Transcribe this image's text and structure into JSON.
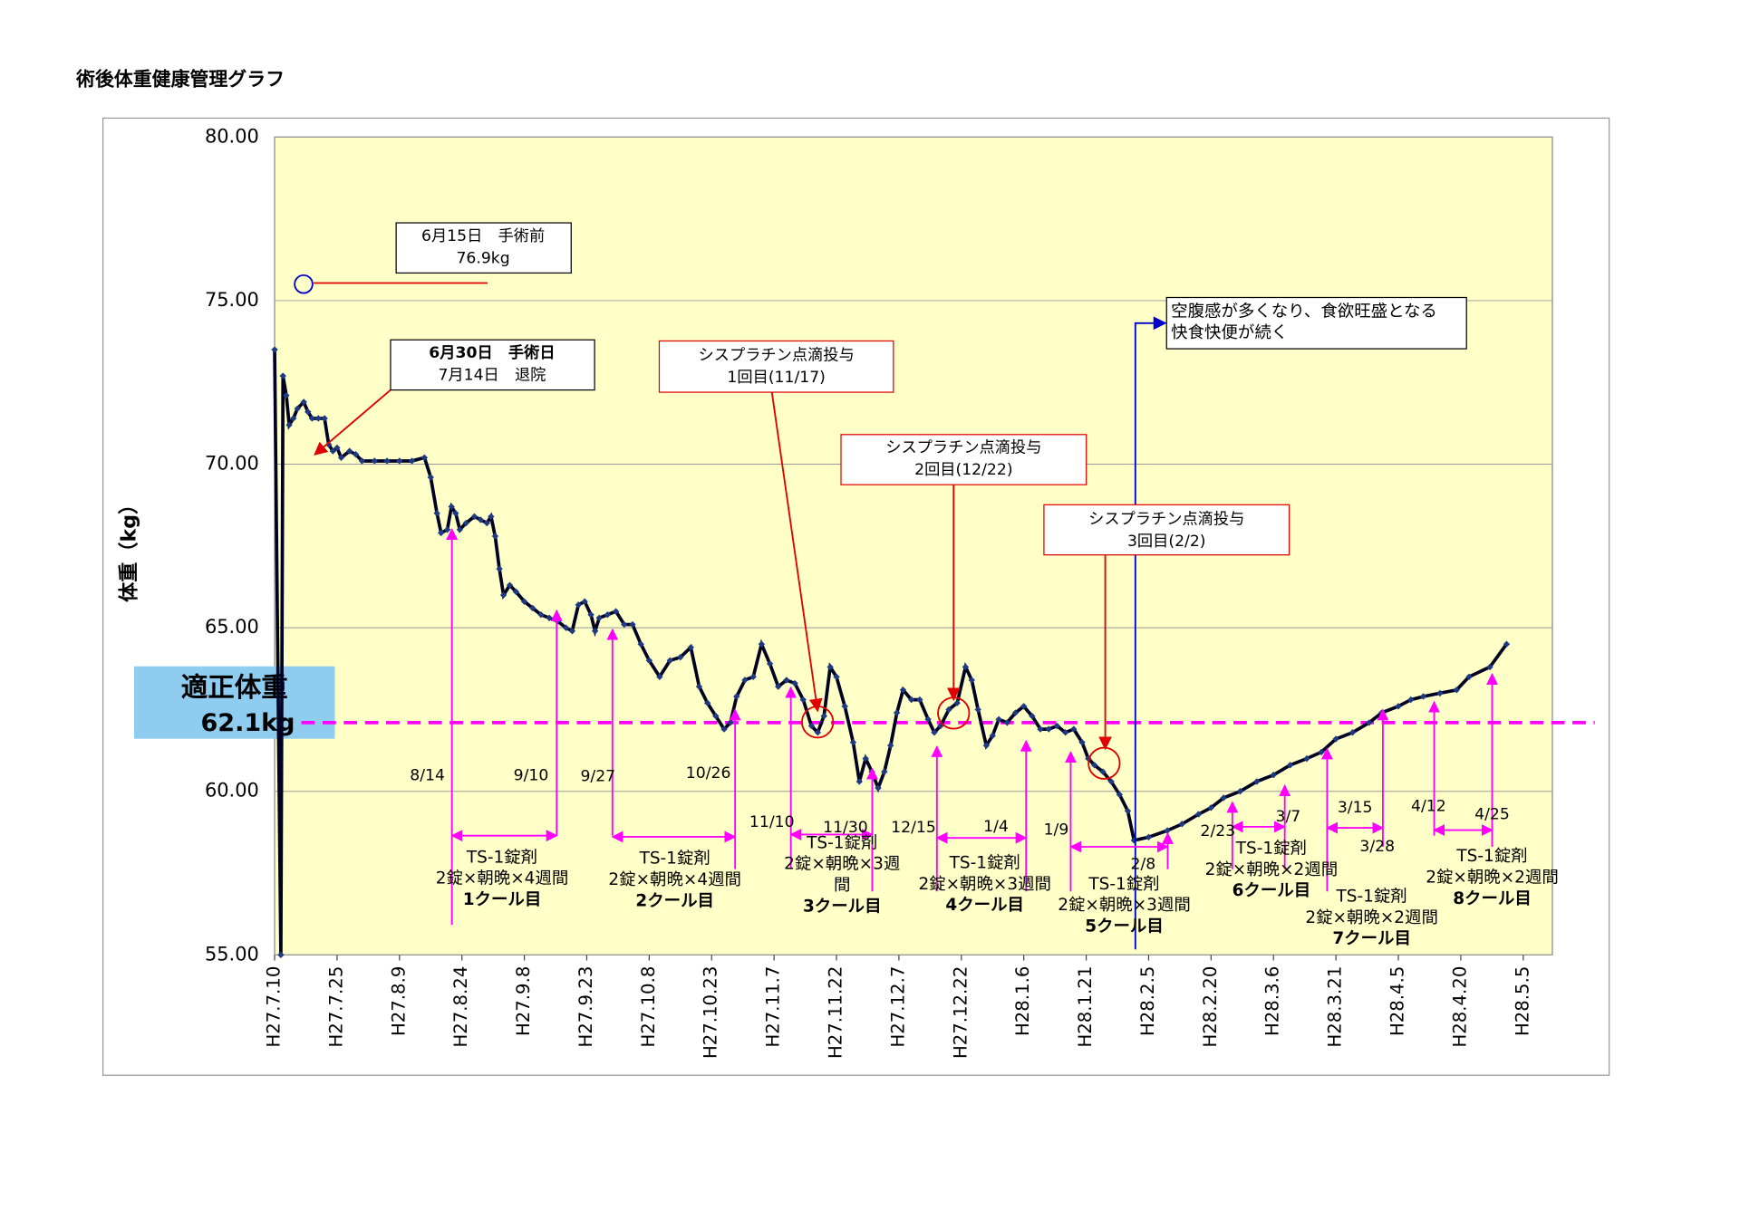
{
  "chart_data": {
    "type": "line",
    "title": "術後体重健康管理グラフ",
    "ylabel": "体重（kg）",
    "color": "#000022",
    "marker_color": "#1f3a80",
    "plot_background": "#ffffc8",
    "grid": true,
    "xlim": [
      0,
      307
    ],
    "ylim": [
      55,
      80
    ],
    "yticks": [
      {
        "value": 55,
        "label": "55.00"
      },
      {
        "value": 60,
        "label": "60.00"
      },
      {
        "value": 65,
        "label": "65.00"
      },
      {
        "value": 70,
        "label": "70.00"
      },
      {
        "value": 75,
        "label": "75.00"
      },
      {
        "value": 80,
        "label": "80.00"
      }
    ],
    "xticks": [
      {
        "value": 0,
        "label": "H27.7.10"
      },
      {
        "value": 15,
        "label": "H27.7.25"
      },
      {
        "value": 30,
        "label": "H27.8.9"
      },
      {
        "value": 45,
        "label": "H27.8.24"
      },
      {
        "value": 60,
        "label": "H27.9.8"
      },
      {
        "value": 75,
        "label": "H27.9.23"
      },
      {
        "value": 90,
        "label": "H27.10.8"
      },
      {
        "value": 105,
        "label": "H27.10.23"
      },
      {
        "value": 120,
        "label": "H27.11.7"
      },
      {
        "value": 135,
        "label": "H27.11.22"
      },
      {
        "value": 150,
        "label": "H27.12.7"
      },
      {
        "value": 165,
        "label": "H27.12.22"
      },
      {
        "value": 180,
        "label": "H28.1.6"
      },
      {
        "value": 195,
        "label": "H28.1.21"
      },
      {
        "value": 210,
        "label": "H28.2.5"
      },
      {
        "value": 225,
        "label": "H28.2.20"
      },
      {
        "value": 240,
        "label": "H28.3.6"
      },
      {
        "value": 255,
        "label": "H28.3.21"
      },
      {
        "value": 270,
        "label": "H28.4.5"
      },
      {
        "value": 285,
        "label": "H28.4.20"
      },
      {
        "value": 300,
        "label": "H28.5.5"
      }
    ],
    "x": [
      0,
      1.5,
      2,
      2.8,
      3.5,
      4.5,
      5.5,
      7,
      8,
      9,
      10.5,
      12,
      13,
      14,
      15,
      16,
      18,
      19.5,
      21,
      24,
      27,
      30,
      33,
      36,
      37.5,
      39,
      40,
      41.5,
      42.5,
      43.5,
      44.5,
      46,
      48,
      49.5,
      51,
      52,
      53,
      54,
      55,
      56.5,
      58,
      60,
      62,
      64,
      66,
      68,
      70,
      71.5,
      73,
      74.5,
      76,
      77,
      78,
      80,
      82,
      84,
      86,
      88,
      90,
      92.5,
      95,
      97.5,
      100,
      102,
      104,
      106,
      108,
      109.5,
      111,
      113,
      115,
      117,
      119,
      121,
      123,
      125,
      127,
      129,
      130.5,
      132,
      133.5,
      135,
      137,
      139,
      140.5,
      142,
      143.5,
      145,
      146.5,
      148,
      149.5,
      151,
      153,
      155,
      157,
      158.5,
      160,
      162,
      164,
      166,
      167.5,
      169,
      171,
      172.5,
      174,
      176,
      178,
      180,
      182,
      184,
      186,
      188,
      190,
      192,
      194,
      195.5,
      197,
      199,
      201,
      203,
      205,
      206.5,
      210,
      214.5,
      218,
      222,
      225,
      228,
      232,
      236,
      240,
      244,
      248,
      251.5,
      255,
      259,
      263,
      266,
      270,
      273,
      276,
      280,
      284,
      287,
      292,
      296
    ],
    "values": [
      73.5,
      55,
      72.7,
      72.1,
      71.2,
      71.4,
      71.7,
      71.9,
      71.6,
      71.4,
      71.4,
      71.4,
      70.6,
      70.4,
      70.5,
      70.2,
      70.4,
      70.3,
      70.1,
      70.1,
      70.1,
      70.1,
      70.1,
      70.2,
      69.6,
      68.5,
      67.9,
      68.0,
      68.7,
      68.5,
      68.0,
      68.2,
      68.4,
      68.3,
      68.2,
      68.4,
      67.8,
      66.8,
      66.0,
      66.3,
      66.1,
      65.8,
      65.6,
      65.4,
      65.3,
      65.2,
      65.0,
      64.9,
      65.7,
      65.8,
      65.4,
      64.9,
      65.3,
      65.4,
      65.5,
      65.1,
      65.1,
      64.5,
      64.0,
      63.5,
      64.0,
      64.1,
      64.4,
      63.2,
      62.7,
      62.3,
      61.9,
      62.1,
      62.9,
      63.4,
      63.5,
      64.5,
      63.9,
      63.2,
      63.4,
      63.3,
      62.8,
      62.0,
      61.8,
      62.3,
      63.8,
      63.5,
      62.6,
      61.5,
      60.3,
      61.0,
      60.6,
      60.1,
      60.6,
      61.4,
      62.4,
      63.1,
      62.8,
      62.8,
      62.2,
      61.8,
      62.0,
      62.5,
      62.7,
      63.8,
      63.4,
      62.5,
      61.4,
      61.7,
      62.2,
      62.1,
      62.4,
      62.6,
      62.3,
      61.9,
      61.9,
      62.0,
      61.8,
      61.9,
      61.5,
      61.0,
      60.8,
      60.6,
      60.3,
      59.9,
      59.4,
      58.5,
      58.6,
      58.8,
      59.0,
      59.3,
      59.5,
      59.8,
      60.0,
      60.3,
      60.5,
      60.8,
      61.0,
      61.2,
      61.6,
      61.8,
      62.1,
      62.4,
      62.6,
      62.8,
      62.9,
      63.0,
      63.1,
      63.5,
      63.8,
      64.5
    ],
    "target": {
      "label": "適正体重",
      "value_label": "62.1kg",
      "value": 62.1
    },
    "notes": [
      {
        "lines": [
          "6月15日　手術前",
          "76.9kg"
        ]
      },
      {
        "lines": [
          "6月30日　手術日",
          "7月14日　退院"
        ]
      },
      {
        "lines": [
          "シスプラチン点滴投与",
          "1回目(11/17)"
        ]
      },
      {
        "lines": [
          "シスプラチン点滴投与",
          "2回目(12/22)"
        ]
      },
      {
        "lines": [
          "シスプラチン点滴投与",
          "3回目(2/2)"
        ]
      },
      {
        "lines": [
          "空腹感が多くなり、食欲旺盛となる",
          "快食快便が続く"
        ]
      }
    ],
    "dates": [
      "8/14",
      "9/10",
      "9/27",
      "10/26",
      "11/10",
      "11/30",
      "12/15",
      "1/4",
      "1/9",
      "2/8",
      "2/23",
      "3/7",
      "3/15",
      "3/28",
      "4/12",
      "4/25"
    ],
    "courses": [
      [
        "TS-1錠剤",
        "2錠×朝晩×4週間",
        "1クール目"
      ],
      [
        "TS-1錠剤",
        "2錠×朝晩×4週間",
        "2クール目"
      ],
      [
        "TS-1錠剤",
        "2錠×朝晩×3週",
        "間",
        "3クール目"
      ],
      [
        "TS-1錠剤",
        "2錠×朝晩×3週間",
        "4クール目"
      ],
      [
        "TS-1錠剤",
        "2錠×朝晩×3週間",
        "5クール目"
      ],
      [
        "TS-1錠剤",
        "2錠×朝晩×2週間",
        "6クール目"
      ],
      [
        "TS-1錠剤",
        "2錠×朝晩×2週間",
        "7クール目"
      ],
      [
        "TS-1錠剤",
        "2錠×朝晩×2週間",
        "8クール目"
      ]
    ]
  }
}
